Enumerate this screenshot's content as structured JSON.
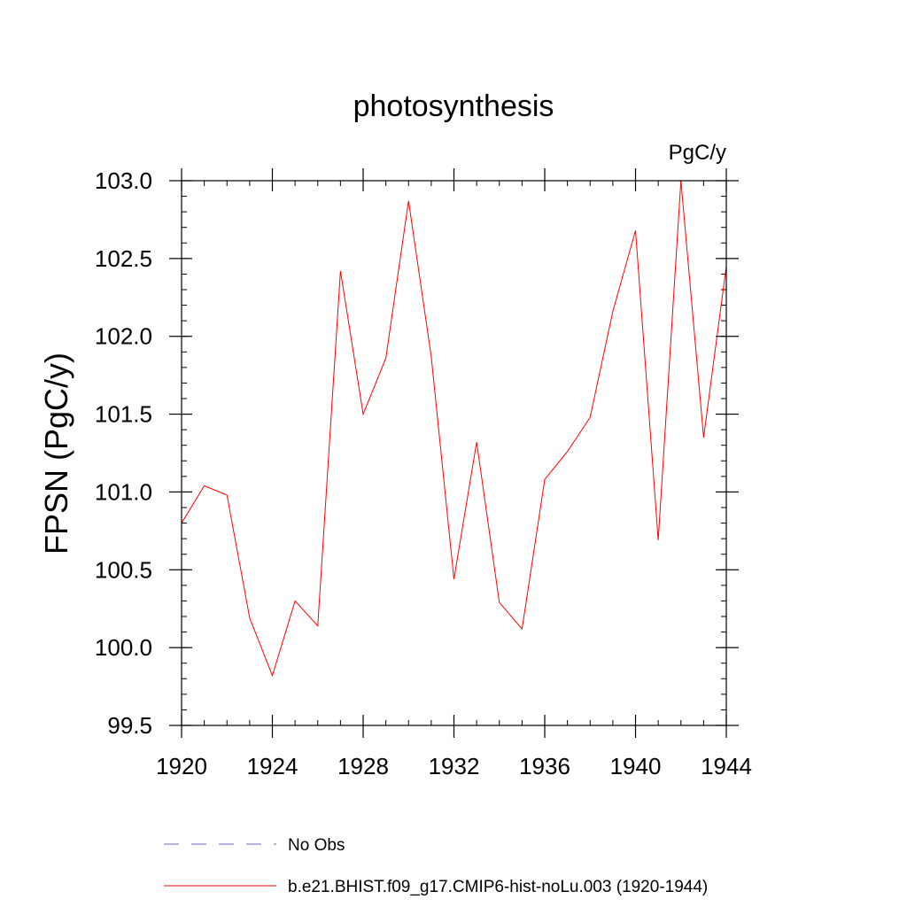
{
  "chart_data": {
    "type": "line",
    "title": "photosynthesis",
    "units_label": "PgC/y",
    "ylabel": "FPSN  (PgC/y)",
    "xlabel": "",
    "xlim": [
      1920,
      1944
    ],
    "ylim": [
      99.5,
      103.0
    ],
    "x_ticks": [
      "1920",
      "1924",
      "1928",
      "1932",
      "1936",
      "1940",
      "1944"
    ],
    "y_ticks": [
      "99.5",
      "100.0",
      "100.5",
      "101.0",
      "101.5",
      "102.0",
      "102.5",
      "103.0"
    ],
    "grid": false,
    "legend_position": "bottom",
    "series": [
      {
        "name": "No Obs",
        "color": "#6a6ab0",
        "style": "dashed",
        "x": [],
        "y": []
      },
      {
        "name": "b.e21.BHIST.f09_g17.CMIP6-hist-noLu.003 (1920-1944)",
        "color": "#ff0000",
        "style": "solid",
        "x": [
          1920,
          1921,
          1922,
          1923,
          1924,
          1925,
          1926,
          1927,
          1928,
          1929,
          1930,
          1931,
          1932,
          1933,
          1934,
          1935,
          1936,
          1937,
          1938,
          1939,
          1940,
          1941,
          1942,
          1943,
          1944
        ],
        "y": [
          100.8,
          101.04,
          100.98,
          100.19,
          99.82,
          100.3,
          100.14,
          102.42,
          101.5,
          101.86,
          102.87,
          101.87,
          100.44,
          101.32,
          100.29,
          100.12,
          101.08,
          101.26,
          101.48,
          102.16,
          102.68,
          100.69,
          103.0,
          101.35,
          102.45
        ]
      }
    ]
  }
}
